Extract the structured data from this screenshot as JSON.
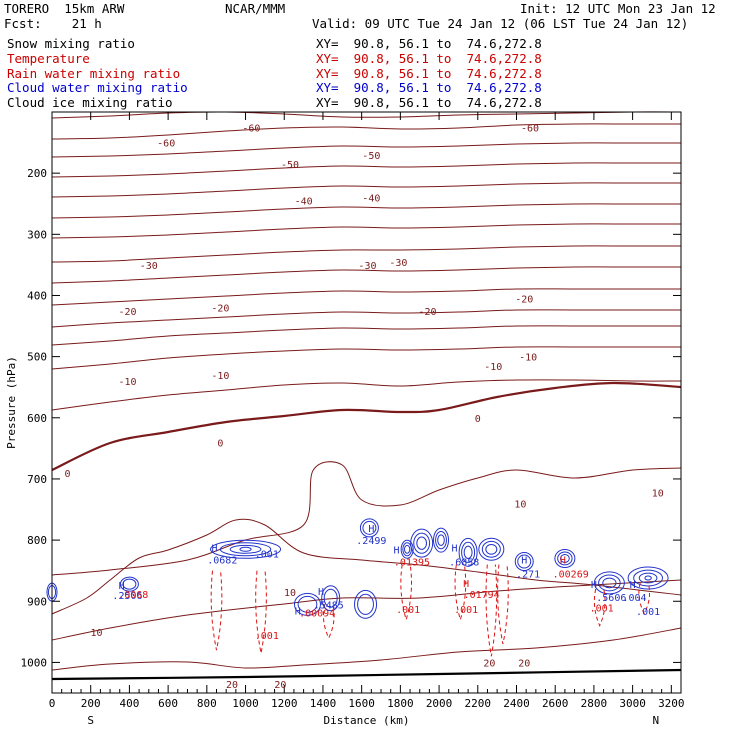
{
  "header": {
    "model": "TORERO  15km ARW",
    "center": "NCAR/MMM",
    "init": "Init: 12 UTC Mon 23 Jan 12",
    "fcst": "Fcst:    21 h",
    "valid": "Valid: 09 UTC Tue 24 Jan 12 (06 LST Tue 24 Jan 12)"
  },
  "fields": [
    {
      "label": "Snow mixing ratio",
      "xy": "XY=  90.8, 56.1 to  74.6,272.8",
      "color": "#000000"
    },
    {
      "label": "Temperature",
      "xy": "XY=  90.8, 56.1 to  74.6,272.8",
      "color": "#cc0000"
    },
    {
      "label": "Rain water mixing ratio",
      "xy": "XY=  90.8, 56.1 to  74.6,272.8",
      "color": "#cc0000"
    },
    {
      "label": "Cloud water mixing ratio",
      "xy": "XY=  90.8, 56.1 to  74.6,272.8",
      "color": "#0000cc"
    },
    {
      "label": "Cloud ice mixing ratio",
      "xy": "XY=  90.8, 56.1 to  74.6,272.8",
      "color": "#000000"
    }
  ],
  "colors": {
    "temperature": "#7a1a1a",
    "cloud_water": "#2233cc",
    "rain_water": "#dd1111",
    "ground": "#000000"
  },
  "chart_data": {
    "type": "contour",
    "xlabel": "Distance (km)",
    "ylabel": "Pressure (hPa)",
    "xlim": [
      0,
      3250
    ],
    "ylim": [
      1050,
      100
    ],
    "x_ticks": [
      0,
      200,
      400,
      600,
      800,
      1000,
      1200,
      1400,
      1600,
      1800,
      2000,
      2200,
      2400,
      2600,
      2800,
      3000,
      3200
    ],
    "y_ticks": [
      200,
      300,
      400,
      500,
      600,
      700,
      800,
      900,
      1000
    ],
    "x_end_labels": {
      "left": "S",
      "right": "N"
    },
    "temperature_contour_labels": [
      {
        "x": 1030,
        "p": 125,
        "text": "-60"
      },
      {
        "x": 2470,
        "p": 125,
        "text": "-60"
      },
      {
        "x": 590,
        "p": 150,
        "text": "-60"
      },
      {
        "x": 1650,
        "p": 170,
        "text": "-50"
      },
      {
        "x": 1230,
        "p": 185,
        "text": "-50"
      },
      {
        "x": 1300,
        "p": 245,
        "text": "-40"
      },
      {
        "x": 1650,
        "p": 240,
        "text": "-40"
      },
      {
        "x": 500,
        "p": 350,
        "text": "-30"
      },
      {
        "x": 1630,
        "p": 350,
        "text": "-30"
      },
      {
        "x": 1790,
        "p": 345,
        "text": "-30"
      },
      {
        "x": 390,
        "p": 425,
        "text": "-20"
      },
      {
        "x": 870,
        "p": 420,
        "text": "-20"
      },
      {
        "x": 1940,
        "p": 425,
        "text": "-20"
      },
      {
        "x": 2440,
        "p": 405,
        "text": "-20"
      },
      {
        "x": 2280,
        "p": 515,
        "text": "-10"
      },
      {
        "x": 2460,
        "p": 500,
        "text": "-10"
      },
      {
        "x": 390,
        "p": 540,
        "text": "-10"
      },
      {
        "x": 870,
        "p": 530,
        "text": "-10"
      },
      {
        "x": 2200,
        "p": 600,
        "text": "0"
      },
      {
        "x": 870,
        "p": 640,
        "text": "0"
      },
      {
        "x": 80,
        "p": 690,
        "text": "0"
      },
      {
        "x": 2420,
        "p": 740,
        "text": "10"
      },
      {
        "x": 3130,
        "p": 722,
        "text": "10"
      },
      {
        "x": 1230,
        "p": 885,
        "text": "10"
      },
      {
        "x": 230,
        "p": 950,
        "text": "10"
      },
      {
        "x": 2440,
        "p": 1000,
        "text": "20"
      },
      {
        "x": 2260,
        "p": 1000,
        "text": "20"
      },
      {
        "x": 930,
        "p": 1035,
        "text": "20"
      },
      {
        "x": 1180,
        "p": 1035,
        "text": "20"
      }
    ],
    "maxima_labels": [
      {
        "x": 840,
        "p": 812,
        "text": "H",
        "color": "#2233cc"
      },
      {
        "x": 880,
        "p": 832,
        "text": ".0682",
        "color": "#2233cc"
      },
      {
        "x": 1110,
        "p": 822,
        "text": ".001",
        "color": "#2233cc"
      },
      {
        "x": 360,
        "p": 873,
        "text": "H",
        "color": "#2233cc"
      },
      {
        "x": 390,
        "p": 890,
        "text": ".2506",
        "color": "#2233cc"
      },
      {
        "x": 420,
        "p": 888,
        "text": ".0068",
        "color": "#dd1111"
      },
      {
        "x": 1650,
        "p": 780,
        "text": "H",
        "color": "#2233cc"
      },
      {
        "x": 1650,
        "p": 800,
        "text": ".2499",
        "color": "#2233cc"
      },
      {
        "x": 1780,
        "p": 815,
        "text": "H",
        "color": "#2233cc"
      },
      {
        "x": 1860,
        "p": 835,
        "text": ".01395",
        "color": "#dd1111"
      },
      {
        "x": 2080,
        "p": 812,
        "text": "H",
        "color": "#2233cc"
      },
      {
        "x": 2130,
        "p": 835,
        "text": ".6858",
        "color": "#2233cc"
      },
      {
        "x": 2440,
        "p": 832,
        "text": "H",
        "color": "#2233cc"
      },
      {
        "x": 2460,
        "p": 855,
        "text": ".271",
        "color": "#2233cc"
      },
      {
        "x": 2140,
        "p": 870,
        "text": "H",
        "color": "#dd1111"
      },
      {
        "x": 2220,
        "p": 888,
        "text": ".01794",
        "color": "#dd1111"
      },
      {
        "x": 2640,
        "p": 832,
        "text": "H",
        "color": "#dd1111"
      },
      {
        "x": 2680,
        "p": 855,
        "text": ".00269",
        "color": "#dd1111"
      },
      {
        "x": 2800,
        "p": 872,
        "text": "H",
        "color": "#2233cc"
      },
      {
        "x": 2890,
        "p": 893,
        "text": ".5606",
        "color": "#2233cc"
      },
      {
        "x": 3010,
        "p": 893,
        "text": ".004",
        "color": "#2233cc"
      },
      {
        "x": 3000,
        "p": 872,
        "text": "H",
        "color": "#2233cc"
      },
      {
        "x": 3080,
        "p": 916,
        "text": ".001",
        "color": "#2233cc"
      },
      {
        "x": 1390,
        "p": 883,
        "text": "H",
        "color": "#2233cc"
      },
      {
        "x": 1430,
        "p": 905,
        "text": ".5485",
        "color": "#2233cc"
      },
      {
        "x": 1370,
        "p": 918,
        "text": ".00094",
        "color": "#dd1111"
      },
      {
        "x": 1270,
        "p": 915,
        "text": "H",
        "color": "#2233cc"
      }
    ],
    "rain_contour_labels": [
      {
        "x": 1110,
        "p": 955,
        "text": ".001"
      },
      {
        "x": 1840,
        "p": 913,
        "text": ".001"
      },
      {
        "x": 2140,
        "p": 913,
        "text": ".001"
      },
      {
        "x": 2840,
        "p": 910,
        "text": ".001"
      }
    ]
  }
}
